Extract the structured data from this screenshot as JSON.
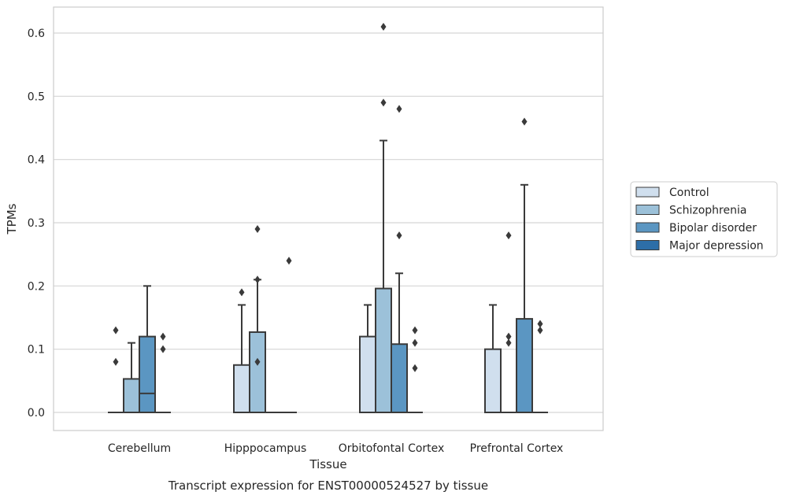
{
  "chart_data": {
    "type": "box",
    "title": "Transcript expression for ENST00000524527 by tissue",
    "xlabel": "Tissue",
    "ylabel": "TPMs",
    "ylim": [
      -0.03,
      0.64
    ],
    "yticks": [
      0.0,
      0.1,
      0.2,
      0.3,
      0.4,
      0.5,
      0.6
    ],
    "ytick_labels": [
      "0.0",
      "0.1",
      "0.2",
      "0.3",
      "0.4",
      "0.5",
      "0.6"
    ],
    "grid": "horizontal",
    "legend_position": "right-outside",
    "categories": [
      "Cerebellum",
      "Hipppocampus",
      "Orbitofontal Cortex",
      "Prefrontal Cortex"
    ],
    "series": [
      {
        "name": "Control",
        "color": "#d0dfee",
        "boxes": [
          {
            "q1": 0.0,
            "median": 0.0,
            "q3": 0.0,
            "whisker_low": 0.0,
            "whisker_high": 0.0,
            "outliers": [
              0.08,
              0.13
            ]
          },
          {
            "q1": 0.0,
            "median": 0.0,
            "q3": 0.075,
            "whisker_low": 0.0,
            "whisker_high": 0.17,
            "outliers": [
              0.19
            ]
          },
          {
            "q1": 0.0,
            "median": 0.0,
            "q3": 0.12,
            "whisker_low": 0.0,
            "whisker_high": 0.17,
            "outliers": []
          },
          {
            "q1": 0.0,
            "median": 0.0,
            "q3": 0.1,
            "whisker_low": 0.0,
            "whisker_high": 0.17,
            "outliers": []
          }
        ]
      },
      {
        "name": "Schizophrenia",
        "color": "#9cc1d9",
        "boxes": [
          {
            "q1": 0.0,
            "median": 0.0,
            "q3": 0.053,
            "whisker_low": 0.0,
            "whisker_high": 0.11,
            "outliers": []
          },
          {
            "q1": 0.0,
            "median": 0.0,
            "q3": 0.127,
            "whisker_low": 0.0,
            "whisker_high": 0.21,
            "outliers": [
              0.29,
              0.21,
              0.08
            ]
          },
          {
            "q1": 0.0,
            "median": 0.0,
            "q3": 0.196,
            "whisker_low": 0.0,
            "whisker_high": 0.43,
            "outliers": [
              0.61,
              0.49
            ]
          },
          {
            "q1": 0.0,
            "median": 0.0,
            "q3": 0.0,
            "whisker_low": 0.0,
            "whisker_high": 0.0,
            "outliers": [
              0.28,
              0.12,
              0.11
            ]
          }
        ]
      },
      {
        "name": "Bipolar disorder",
        "color": "#5b96c2",
        "boxes": [
          {
            "q1": 0.0,
            "median": 0.03,
            "q3": 0.12,
            "whisker_low": 0.0,
            "whisker_high": 0.2,
            "outliers": []
          },
          {
            "q1": 0.0,
            "median": 0.0,
            "q3": 0.0,
            "whisker_low": 0.0,
            "whisker_high": 0.0,
            "outliers": []
          },
          {
            "q1": 0.0,
            "median": 0.0,
            "q3": 0.108,
            "whisker_low": 0.0,
            "whisker_high": 0.22,
            "outliers": [
              0.48,
              0.28
            ]
          },
          {
            "q1": 0.0,
            "median": 0.0,
            "q3": 0.148,
            "whisker_low": 0.0,
            "whisker_high": 0.36,
            "outliers": [
              0.46
            ]
          }
        ]
      },
      {
        "name": "Major depression",
        "color": "#2d6ea8",
        "boxes": [
          {
            "q1": 0.0,
            "median": 0.0,
            "q3": 0.0,
            "whisker_low": 0.0,
            "whisker_high": 0.0,
            "outliers": [
              0.12,
              0.1
            ]
          },
          {
            "q1": 0.0,
            "median": 0.0,
            "q3": 0.0,
            "whisker_low": 0.0,
            "whisker_high": 0.0,
            "outliers": [
              0.24
            ]
          },
          {
            "q1": 0.0,
            "median": 0.0,
            "q3": 0.0,
            "whisker_low": 0.0,
            "whisker_high": 0.0,
            "outliers": [
              0.13,
              0.11,
              0.07
            ]
          },
          {
            "q1": 0.0,
            "median": 0.0,
            "q3": 0.0,
            "whisker_low": 0.0,
            "whisker_high": 0.0,
            "outliers": [
              0.14,
              0.13
            ]
          }
        ]
      }
    ]
  }
}
